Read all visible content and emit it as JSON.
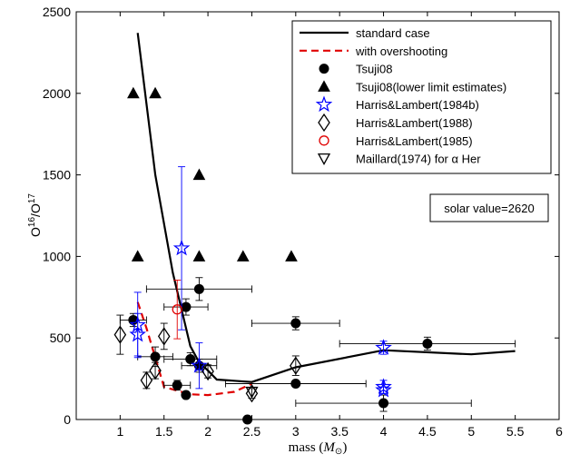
{
  "chart_data": {
    "type": "scatter",
    "xlabel_main": "mass (",
    "xlabel_symbol": "M",
    "xlabel_sub": "⊙",
    "xlabel_close": ")",
    "ylabel_base1": "O",
    "ylabel_sup1": "16",
    "ylabel_slash": "/O",
    "ylabel_sup2": "17",
    "xlim": [
      0.5,
      6
    ],
    "ylim": [
      0,
      2500
    ],
    "x_ticks": [
      1,
      1.5,
      2,
      2.5,
      3,
      3.5,
      4,
      4.5,
      5,
      5.5,
      6
    ],
    "x_tick_labels": [
      "1",
      "1.5",
      "2",
      "2.5",
      "3",
      "3.5",
      "4",
      "4.5",
      "5",
      "5.5",
      "6"
    ],
    "y_ticks": [
      0,
      500,
      1000,
      1500,
      2000,
      2500
    ],
    "y_tick_labels": [
      "0",
      "500",
      "1000",
      "1500",
      "2000",
      "2500"
    ],
    "grid": false,
    "legend_position": "top-right",
    "annotation": "solar value=2620",
    "series": [
      {
        "name": "standard case",
        "kind": "line",
        "color": "#000000",
        "style": "solid",
        "points": [
          [
            1.2,
            2370
          ],
          [
            1.4,
            1500
          ],
          [
            1.6,
            900
          ],
          [
            1.8,
            450
          ],
          [
            1.9,
            350
          ],
          [
            2.0,
            300
          ],
          [
            2.1,
            245
          ],
          [
            2.5,
            230
          ],
          [
            3.0,
            320
          ],
          [
            4.0,
            425
          ],
          [
            5.0,
            400
          ],
          [
            5.5,
            420
          ]
        ]
      },
      {
        "name": "with overshooting",
        "kind": "line",
        "color": "#e00000",
        "style": "dashed",
        "points": [
          [
            1.2,
            720
          ],
          [
            1.3,
            560
          ],
          [
            1.5,
            200
          ],
          [
            1.8,
            155
          ],
          [
            2.0,
            150
          ],
          [
            2.3,
            170
          ],
          [
            2.5,
            220
          ]
        ]
      },
      {
        "name": "Tsuji08",
        "kind": "marker",
        "marker": "circle-filled",
        "color": "#000000",
        "points": [
          {
            "x": 1.15,
            "y": 610,
            "xerr": 0.15,
            "yerr": 40
          },
          {
            "x": 1.4,
            "y": 385,
            "xerr": 0.2,
            "yerr": 60
          },
          {
            "x": 1.75,
            "y": 690,
            "xerr": 0.25,
            "yerr": 50
          },
          {
            "x": 1.8,
            "y": 370,
            "xerr": 0.3,
            "yerr": 40
          },
          {
            "x": 1.65,
            "y": 210,
            "xerr": 0.15,
            "yerr": 30
          },
          {
            "x": 1.75,
            "y": 150,
            "xerr": 0,
            "yerr": 0
          },
          {
            "x": 1.9,
            "y": 800,
            "xerr": 0.6,
            "yerr": 70
          },
          {
            "x": 1.9,
            "y": 330,
            "xerr": 0.2,
            "yerr": 40
          },
          {
            "x": 2.45,
            "y": 0,
            "xerr": 0,
            "yerr": 0
          },
          {
            "x": 3.0,
            "y": 590,
            "xerr": 0.5,
            "yerr": 40
          },
          {
            "x": 3.0,
            "y": 220,
            "xerr": 0.8,
            "yerr": 0
          },
          {
            "x": 4.0,
            "y": 100,
            "xerr": 1.0,
            "yerr": 50
          },
          {
            "x": 4.5,
            "y": 465,
            "xerr": 1.0,
            "yerr": 40
          }
        ]
      },
      {
        "name": "Tsuji08(lower limit estimates)",
        "kind": "marker",
        "marker": "triangle-up-filled",
        "color": "#000000",
        "points": [
          {
            "x": 1.15,
            "y": 2000
          },
          {
            "x": 1.4,
            "y": 2000
          },
          {
            "x": 1.2,
            "y": 1000
          },
          {
            "x": 1.9,
            "y": 1500
          },
          {
            "x": 1.9,
            "y": 1000
          },
          {
            "x": 2.4,
            "y": 1000
          },
          {
            "x": 2.95,
            "y": 1000
          }
        ]
      },
      {
        "name": "Harris&Lambert(1984b)",
        "kind": "marker",
        "marker": "star-open",
        "color": "#0000ff",
        "points": [
          {
            "x": 1.2,
            "y": 580,
            "xerr": 0,
            "yerr": 200
          },
          {
            "x": 1.2,
            "y": 520,
            "xerr": 0,
            "yerr": 130
          },
          {
            "x": 1.7,
            "y": 1050,
            "xerr": 0,
            "yerr": 500
          },
          {
            "x": 1.9,
            "y": 330,
            "xerr": 0,
            "yerr": 140
          },
          {
            "x": 4.0,
            "y": 440,
            "xerr": 0,
            "yerr": 40
          },
          {
            "x": 4.0,
            "y": 200,
            "xerr": 0,
            "yerr": 40
          },
          {
            "x": 4.0,
            "y": 180,
            "xerr": 0,
            "yerr": 20
          }
        ]
      },
      {
        "name": "Harris&Lambert(1988)",
        "kind": "marker",
        "marker": "diamond-open",
        "color": "#000000",
        "points": [
          {
            "x": 1.0,
            "y": 520,
            "xerr": 0,
            "yerr": 120
          },
          {
            "x": 1.3,
            "y": 240,
            "xerr": 0,
            "yerr": 50
          },
          {
            "x": 1.4,
            "y": 300,
            "xerr": 0,
            "yerr": 50
          },
          {
            "x": 1.5,
            "y": 510,
            "xerr": 0,
            "yerr": 80
          },
          {
            "x": 2.0,
            "y": 295,
            "xerr": 0,
            "yerr": 40
          },
          {
            "x": 2.5,
            "y": 160,
            "xerr": 0,
            "yerr": 30
          },
          {
            "x": 3.0,
            "y": 330,
            "xerr": 0,
            "yerr": 60
          }
        ]
      },
      {
        "name": "Harris&Lambert(1985)",
        "kind": "marker",
        "marker": "circle-open",
        "color": "#e00000",
        "points": [
          {
            "x": 1.65,
            "y": 675,
            "xerr": 0,
            "yerr": 180
          }
        ]
      },
      {
        "name": "Maillard(1974) for α Her",
        "kind": "marker",
        "marker": "triangle-down-open",
        "color": "#000000",
        "points": [
          {
            "x": 2.5,
            "y": 170,
            "xerr": 0,
            "yerr": 0
          }
        ]
      }
    ]
  }
}
